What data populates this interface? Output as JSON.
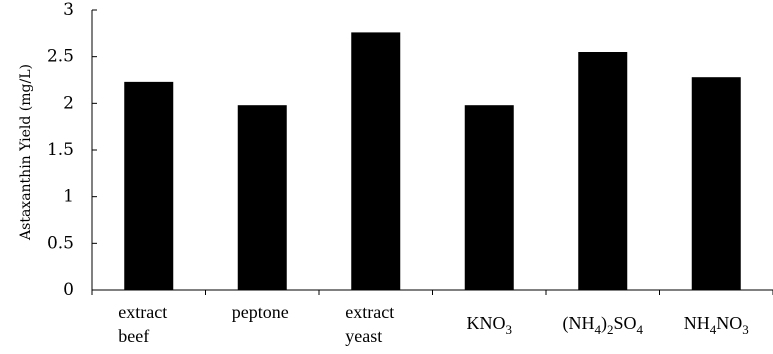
{
  "chart_data": {
    "type": "bar",
    "title": "",
    "xlabel": "",
    "ylabel": "Astaxanthin Yield (mg/L)",
    "ylim": [
      0,
      3
    ],
    "grid": false,
    "yticks": [
      "0",
      "0.5",
      "1",
      "1.5",
      "2",
      "2.5",
      "3"
    ],
    "categories": [
      {
        "id": "beef-extract",
        "lines": [
          "extract",
          "beef"
        ]
      },
      {
        "id": "peptone",
        "lines": [
          "peptone"
        ]
      },
      {
        "id": "yeast-extract",
        "lines": [
          "extract",
          "yeast"
        ]
      },
      {
        "id": "kno3",
        "formula": [
          {
            "t": "KNO"
          },
          {
            "t": "3",
            "sub": true
          }
        ]
      },
      {
        "id": "nh4-2so4",
        "formula": [
          {
            "t": "(NH"
          },
          {
            "t": "4",
            "sub": true
          },
          {
            "t": ")"
          },
          {
            "t": "2",
            "sub": true
          },
          {
            "t": "SO"
          },
          {
            "t": "4",
            "sub": true
          }
        ]
      },
      {
        "id": "nh4no3",
        "formula": [
          {
            "t": "NH"
          },
          {
            "t": "4",
            "sub": true
          },
          {
            "t": "NO"
          },
          {
            "t": "3",
            "sub": true
          }
        ]
      }
    ],
    "values": [
      2.23,
      1.98,
      2.76,
      1.98,
      2.55,
      2.28
    ],
    "bar_color": "#000000",
    "axis_color": "#000000"
  }
}
